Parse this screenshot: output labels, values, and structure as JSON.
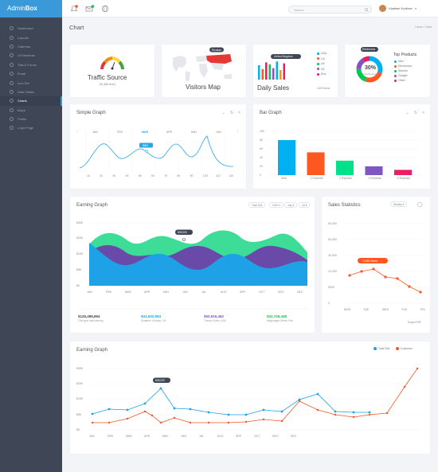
{
  "brand": {
    "name_light": "Admin",
    "name_bold": "Box"
  },
  "sidebar": {
    "items": [
      {
        "label": "Dashboard"
      },
      {
        "label": "Layouts"
      },
      {
        "label": "Calendar"
      },
      {
        "label": "UI Elements"
      },
      {
        "label": "Tbls & Forms"
      },
      {
        "label": "Email"
      },
      {
        "label": "Icon Set"
      },
      {
        "label": "Data Tables"
      },
      {
        "label": "Charts"
      },
      {
        "label": "Maps"
      },
      {
        "label": "Profile"
      },
      {
        "label": "Login Page"
      }
    ],
    "active_index": 8
  },
  "topbar": {
    "notif_badge": "3",
    "mail_badge": "2",
    "search_placeholder": "Search",
    "user_name": "Vladimir Kudinov"
  },
  "page": {
    "title": "Chart",
    "breadcrumb": "Home / Chart"
  },
  "traffic": {
    "title": "Traffic Source",
    "value": "85",
    "unit": "(Mid level)"
  },
  "visitors": {
    "title": "Visitors Map",
    "tooltip": "Russian"
  },
  "daily": {
    "title": "Daily Sales",
    "footer": "1200 Items",
    "tooltip": "United Kingdom",
    "legend": [
      {
        "label": "USA",
        "color": "#00b0f0"
      },
      {
        "label": "CA",
        "color": "#ff5722"
      },
      {
        "label": "UK",
        "color": "#00c853"
      },
      {
        "label": "NZ",
        "color": "#7e57c2"
      },
      {
        "label": "Rus",
        "color": "#e91e63"
      }
    ],
    "bars": [
      {
        "v": 0.75,
        "c": "#00b0f0"
      },
      {
        "v": 0.55,
        "c": "#ff5722"
      },
      {
        "v": 0.9,
        "c": "#e91e63"
      },
      {
        "v": 0.8,
        "c": "#00c853"
      },
      {
        "v": 0.6,
        "c": "#7e57c2"
      },
      {
        "v": 0.95,
        "c": "#00b0f0"
      },
      {
        "v": 0.5,
        "c": "#ff9800"
      },
      {
        "v": 0.85,
        "c": "#e91e63"
      }
    ]
  },
  "top_products": {
    "title": "Top Products",
    "tooltip": "Electronics",
    "percent": "30%",
    "sub": "Products Items",
    "segments": [
      {
        "label": "Men",
        "color": "#00b0f0",
        "value": 30
      },
      {
        "label": "Electronics",
        "color": "#ff5722",
        "value": 25
      },
      {
        "label": "Women",
        "color": "#00c853",
        "value": 20
      },
      {
        "label": "Gadget",
        "color": "#7e57c2",
        "value": 15
      },
      {
        "label": "Other",
        "color": "#e91e63",
        "value": 10
      }
    ]
  },
  "simple_graph": {
    "title": "Simple Graph",
    "months": [
      "JAN",
      "FEB",
      "MAR",
      "APR",
      "MAY",
      "JUN"
    ],
    "active_month": "MAR",
    "tooltip": "$500",
    "x_ticks": [
      "10",
      "20",
      "30",
      "40",
      "50",
      "60",
      "70",
      "80",
      "90",
      "100",
      "110",
      "120"
    ]
  },
  "bar_graph": {
    "title": "Bar Graph",
    "y_ticks": [
      "100",
      "80",
      "60",
      "40",
      "20",
      "0"
    ],
    "categories": [
      "New",
      "1 Repeats",
      "2 Repeats",
      "3 Repeats",
      "5 Repeats"
    ],
    "values": [
      80,
      52,
      33,
      20,
      12
    ],
    "colors": [
      "#00b0f0",
      "#ff5722",
      "#00e28a",
      "#7e57c2",
      "#e91e63"
    ]
  },
  "earning_graph": {
    "title": "Earning Graph",
    "filters": [
      "Total Sell",
      "2016",
      "July",
      "18"
    ],
    "tooltip": "$28,000",
    "y_ticks": [
      "$30K",
      "$20K",
      "$10K",
      "$5K",
      "$0"
    ],
    "months": [
      "JAN",
      "FEB",
      "MAR",
      "APR",
      "MAY",
      "JUN",
      "JUL",
      "AUG",
      "SEP",
      "OCT",
      "NOV",
      "DEC"
    ],
    "stats": [
      {
        "value": "$125,498,894",
        "desc": "This year total earning",
        "color": "#444"
      },
      {
        "value": "$41,632,954",
        "desc": "Southern Orlando, CA",
        "color": "#00b0f0"
      },
      {
        "value": "$50,916,482",
        "desc": "Tucson Estho, USA",
        "color": "#7e57c2"
      },
      {
        "value": "$32,745,448",
        "desc": "Meghnagar Street, Ruh",
        "color": "#00c853"
      }
    ]
  },
  "sales_stats": {
    "title": "Sales Statistics",
    "filter": "Weekly",
    "y_ticks": [
      "60,000",
      "50,000",
      "30,000",
      "10,000",
      "5000",
      "0"
    ],
    "days": [
      "MON",
      "TUE",
      "WED",
      "THU",
      "FRI"
    ],
    "tooltip": "10,000 Items",
    "footer": "Export PDF"
  },
  "earning_graph2": {
    "title": "Earning Graph",
    "legend": [
      {
        "label": "Total Sell",
        "color": "#1ea1e6"
      },
      {
        "label": "Customer",
        "color": "#f2572b"
      }
    ],
    "tooltip": "$28,000",
    "y_ticks": [
      "$30K",
      "$20K",
      "$10K",
      "$5K",
      "$0"
    ],
    "months": [
      "JAN",
      "FEB",
      "MAR",
      "APR",
      "MAY",
      "JUN",
      "JUL",
      "AUG",
      "SEP",
      "OCT",
      "NOV",
      "DEC"
    ]
  }
}
